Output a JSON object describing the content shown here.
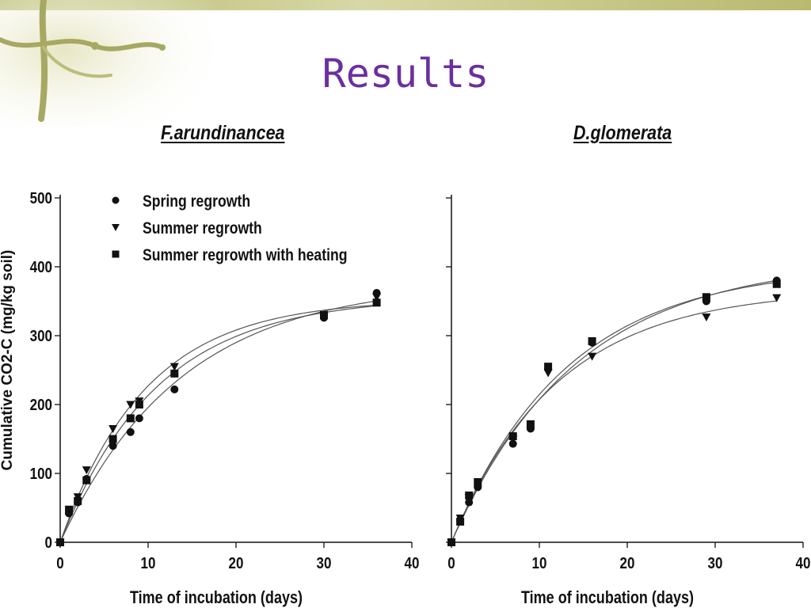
{
  "slide": {
    "title": "Results"
  },
  "chart_data": [
    {
      "type": "scatter",
      "title": "F.arundinancea",
      "xlabel": "Time of incubation (days)",
      "ylabel": "Cumulative CO2-C (mg/kg soil)",
      "xlim": [
        0,
        40
      ],
      "ylim": [
        0,
        500
      ],
      "xticks": [
        0,
        10,
        20,
        30,
        40
      ],
      "yticks": [
        0,
        100,
        200,
        300,
        400,
        500
      ],
      "legend_position": "top-left",
      "series": [
        {
          "name": "Spring regrowth",
          "marker": "circle",
          "x": [
            0,
            1,
            2,
            3,
            6,
            8,
            9,
            13,
            30,
            36
          ],
          "y": [
            0,
            42,
            58,
            92,
            140,
            160,
            180,
            222,
            326,
            362
          ]
        },
        {
          "name": "Summer regrowth",
          "marker": "triangle-down",
          "x": [
            0,
            1,
            2,
            3,
            6,
            8,
            9,
            13,
            30,
            36
          ],
          "y": [
            0,
            48,
            66,
            105,
            165,
            200,
            205,
            255,
            328,
            356
          ]
        },
        {
          "name": "Summer regrowth with heating",
          "marker": "square",
          "x": [
            0,
            1,
            2,
            3,
            6,
            8,
            9,
            13,
            30,
            36
          ],
          "y": [
            0,
            46,
            60,
            90,
            150,
            180,
            200,
            245,
            330,
            348
          ]
        }
      ]
    },
    {
      "type": "scatter",
      "title": "D.glomerata",
      "xlabel": "Time of incubation (days)",
      "ylabel": "",
      "xlim": [
        0,
        40
      ],
      "ylim": [
        0,
        500
      ],
      "xticks": [
        0,
        10,
        20,
        30,
        40
      ],
      "yticks": [
        0,
        100,
        200,
        300,
        400,
        500
      ],
      "series": [
        {
          "name": "Spring regrowth",
          "marker": "circle",
          "x": [
            0,
            1,
            2,
            3,
            7,
            9,
            11,
            16,
            29,
            37
          ],
          "y": [
            0,
            32,
            58,
            80,
            143,
            165,
            252,
            290,
            350,
            380
          ]
        },
        {
          "name": "Summer regrowth",
          "marker": "triangle-down",
          "x": [
            0,
            1,
            2,
            3,
            7,
            9,
            11,
            16,
            29,
            37
          ],
          "y": [
            0,
            35,
            65,
            88,
            150,
            172,
            246,
            270,
            327,
            355
          ]
        },
        {
          "name": "Summer regrowth with heating",
          "marker": "square",
          "x": [
            0,
            1,
            2,
            3,
            7,
            9,
            11,
            16,
            29,
            37
          ],
          "y": [
            0,
            30,
            68,
            86,
            154,
            170,
            255,
            292,
            356,
            375
          ]
        }
      ]
    }
  ],
  "colors": {
    "ink": "#111111",
    "title": "#6a2fa0",
    "band": "#c9c98a",
    "deco": "#9fa05a"
  }
}
